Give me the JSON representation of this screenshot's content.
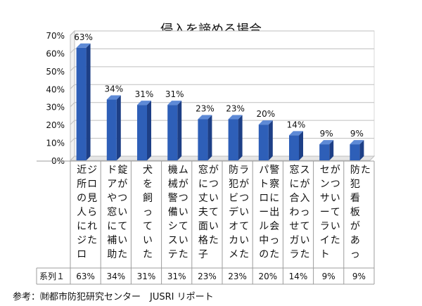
{
  "chart_data": {
    "type": "bar",
    "title": "侵入を諦める場合",
    "categories": [
      "近所の人にジロジロ見られた",
      "ドアや窓に補助錠がついていた",
      "犬を飼っていた",
      "機械警備システムがついていた",
      "窓に丈夫面格子がついていた",
      "防犯ビデオカメラがついていた",
      "パトロール中の警察に出会った",
      "窓に合わせガラスが入っていた",
      "センサーライトがついていた",
      "防犯看板があった"
    ],
    "series": [
      {
        "name": "系列１",
        "values": [
          63,
          34,
          31,
          31,
          23,
          23,
          20,
          14,
          9,
          9
        ],
        "labels": [
          "63%",
          "34%",
          "31%",
          "31%",
          "23%",
          "23%",
          "20%",
          "14%",
          "9%",
          "9%"
        ]
      }
    ],
    "yticks": [
      "0%",
      "10%",
      "20%",
      "30%",
      "40%",
      "50%",
      "60%",
      "70%"
    ],
    "ylim": [
      0,
      70
    ],
    "grid": true,
    "colors": {
      "bar": "#2e5fb8",
      "bar_dark": "#1d3f86",
      "bar_light": "#5e8ad6",
      "grid": "#bfbfbf"
    }
  },
  "source": "参考：㈶都市防犯研究センター　JUSRI リポート"
}
